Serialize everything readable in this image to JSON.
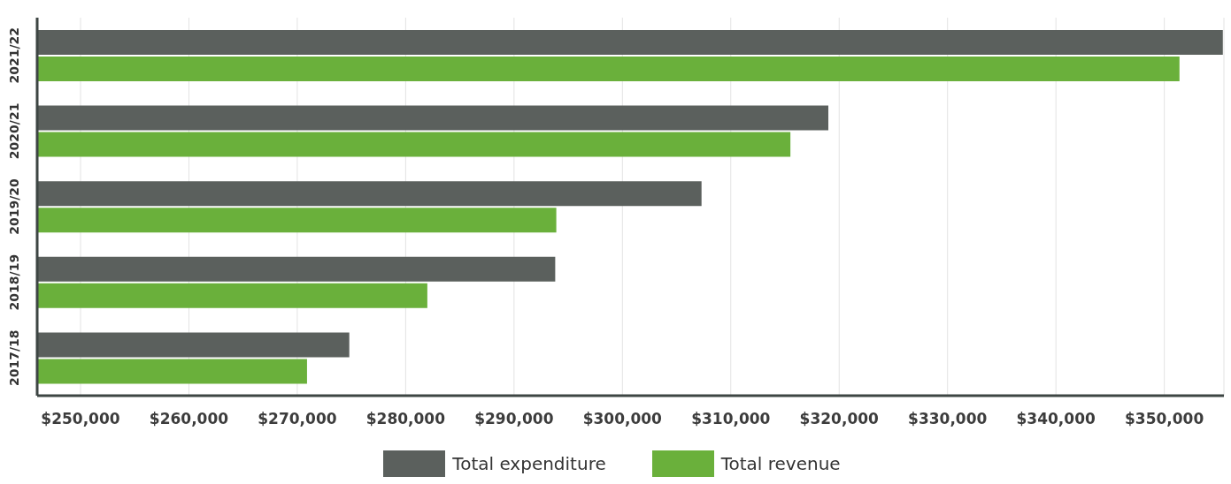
{
  "chart_data": {
    "type": "bar",
    "orientation": "horizontal",
    "categories": [
      "2021/22",
      "2020/21",
      "2019/20",
      "2018/19",
      "2017/18"
    ],
    "series": [
      {
        "name": "Total expenditure",
        "color": "#5b605d",
        "values": [
          355400,
          319000,
          307300,
          293800,
          274800
        ]
      },
      {
        "name": "Total revenue",
        "color": "#6ab03b",
        "values": [
          351400,
          315500,
          293900,
          282000,
          270900
        ]
      }
    ],
    "xlim": [
      246000,
      355500
    ],
    "xticks": [
      {
        "value": 250000,
        "label": "$250,000"
      },
      {
        "value": 260000,
        "label": "$260,000"
      },
      {
        "value": 270000,
        "label": "$270,000"
      },
      {
        "value": 280000,
        "label": "$280,000"
      },
      {
        "value": 290000,
        "label": "$290,000"
      },
      {
        "value": 300000,
        "label": "$300,000"
      },
      {
        "value": 310000,
        "label": "$310,000"
      },
      {
        "value": 320000,
        "label": "$320,000"
      },
      {
        "value": 330000,
        "label": "$330,000"
      },
      {
        "value": 340000,
        "label": "$340,000"
      },
      {
        "value": 350000,
        "label": "$350,000"
      }
    ],
    "grid": "x",
    "legend": "bottom"
  }
}
